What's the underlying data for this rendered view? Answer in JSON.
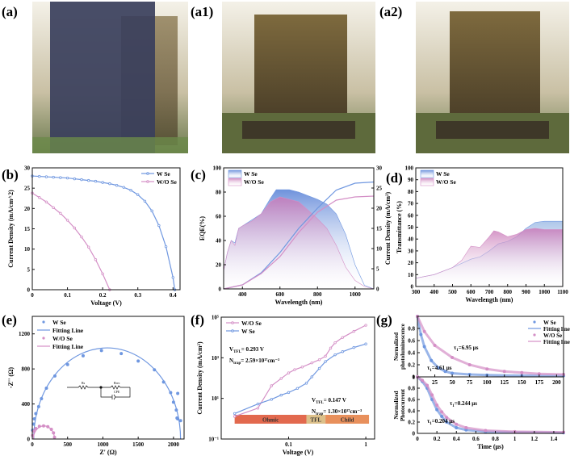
{
  "panel_labels": {
    "a": "(a)",
    "a1": "(a1)",
    "a2": "(a2)",
    "b": "(b)",
    "c": "(c)",
    "d": "(d)",
    "e": "(e)",
    "f": "(f)",
    "g": "(g)"
  },
  "colors": {
    "w_se": "#6f97e0",
    "wo_se": "#d48fc6",
    "ohmic": "#e2694e",
    "tfl": "#dcc08a",
    "child": "#e8905c"
  },
  "chart_data": [
    {
      "id": "b",
      "type": "line",
      "xlabel": "Voltage (V)",
      "ylabel": "Current Density (mA/cm^2)",
      "xlim": [
        0,
        0.42
      ],
      "ylim": [
        0,
        30
      ],
      "xticks": [
        0.0,
        0.1,
        0.2,
        0.3,
        0.4
      ],
      "yticks": [
        0,
        5,
        10,
        15,
        20,
        25,
        30
      ],
      "legend": "top-right",
      "series": [
        {
          "name": "W  Se",
          "color": "w_se",
          "markers": true,
          "x": [
            0,
            0.02,
            0.04,
            0.06,
            0.08,
            0.1,
            0.12,
            0.14,
            0.16,
            0.18,
            0.2,
            0.22,
            0.24,
            0.26,
            0.28,
            0.3,
            0.32,
            0.34,
            0.36,
            0.38,
            0.4,
            0.405
          ],
          "y": [
            28,
            27.9,
            27.8,
            27.7,
            27.6,
            27.5,
            27.3,
            27.1,
            26.9,
            26.7,
            26.4,
            26.1,
            25.7,
            25.2,
            24.5,
            23.4,
            21.8,
            19.4,
            15.8,
            10.6,
            3,
            0
          ]
        },
        {
          "name": "W/O Se",
          "color": "wo_se",
          "markers": true,
          "x": [
            0,
            0.02,
            0.04,
            0.06,
            0.08,
            0.1,
            0.12,
            0.14,
            0.16,
            0.18,
            0.2,
            0.22
          ],
          "y": [
            23.8,
            22.7,
            21.6,
            20.2,
            18.8,
            17.1,
            15.2,
            13,
            10.5,
            7.4,
            3.9,
            0
          ]
        }
      ]
    },
    {
      "id": "c",
      "type": "area",
      "xlabel": "Wavelength (nm)",
      "ylabel": "EQE(%)",
      "y2label": "Current Density (mA/cm²)",
      "xlim": [
        300,
        1100
      ],
      "ylim": [
        0,
        100
      ],
      "y2lim": [
        0,
        30
      ],
      "xticks": [
        400,
        600,
        800,
        1000
      ],
      "yticks": [
        0,
        20,
        40,
        60,
        80,
        100
      ],
      "y2ticks": [
        0,
        5,
        10,
        15,
        20,
        25,
        30
      ],
      "legend": "top-left",
      "series": [
        {
          "name": "W Se",
          "color": "w_se",
          "fill": true,
          "x": [
            300,
            320,
            340,
            360,
            380,
            400,
            450,
            500,
            550,
            580,
            650,
            700,
            750,
            800,
            850,
            900,
            950,
            1000,
            1050,
            1100
          ],
          "y": [
            15,
            30,
            40,
            38,
            50,
            52,
            57,
            62,
            75,
            82,
            82,
            80,
            77,
            74,
            70,
            62,
            45,
            20,
            3,
            0
          ]
        },
        {
          "name": "W/O Se",
          "color": "wo_se",
          "fill": true,
          "x": [
            300,
            320,
            340,
            360,
            380,
            400,
            450,
            500,
            550,
            600,
            650,
            700,
            750,
            800,
            850,
            900,
            950,
            1000,
            1050,
            1100
          ],
          "y": [
            15,
            30,
            40,
            36,
            50,
            52,
            56,
            62,
            72,
            76,
            74,
            72,
            65,
            58,
            50,
            36,
            18,
            7,
            2,
            0
          ]
        },
        {
          "name": "W Se Jsc",
          "color": "w_se",
          "axis": "y2",
          "x": [
            300,
            400,
            500,
            600,
            700,
            800,
            900,
            1000,
            1100
          ],
          "y": [
            0,
            1,
            4,
            9,
            15,
            20,
            24.5,
            26.2,
            26.5
          ]
        },
        {
          "name": "W/O Se Jsc",
          "color": "wo_se",
          "axis": "y2",
          "x": [
            300,
            400,
            500,
            600,
            700,
            800,
            900,
            1000,
            1100
          ],
          "y": [
            0,
            1,
            3.8,
            8,
            14,
            19,
            22,
            22.8,
            23
          ]
        }
      ]
    },
    {
      "id": "d",
      "type": "area",
      "xlabel": "Wavelength (nm)",
      "ylabel": "Transmittance (%)",
      "xlim": [
        300,
        1100
      ],
      "ylim": [
        0,
        100
      ],
      "xticks": [
        300,
        400,
        500,
        600,
        700,
        800,
        900,
        1000,
        1100
      ],
      "yticks": [
        0,
        10,
        20,
        30,
        40,
        50,
        60,
        70,
        80,
        90,
        100
      ],
      "legend": "top-left",
      "series": [
        {
          "name": "W Se",
          "color": "w_se",
          "fill": true,
          "x": [
            300,
            400,
            500,
            600,
            650,
            700,
            750,
            800,
            850,
            900,
            950,
            1000,
            1100
          ],
          "y": [
            7,
            10,
            16,
            23,
            25,
            30,
            36,
            38,
            42,
            49,
            54,
            55,
            55
          ]
        },
        {
          "name": "W/O Se",
          "color": "wo_se",
          "fill": true,
          "x": [
            300,
            400,
            500,
            550,
            600,
            650,
            700,
            725,
            750,
            800,
            850,
            900,
            950,
            1000,
            1100
          ],
          "y": [
            7,
            10,
            16,
            22,
            34,
            33,
            42,
            47,
            46,
            42,
            44,
            48,
            49,
            48,
            48
          ]
        }
      ]
    },
    {
      "id": "e",
      "type": "scatter",
      "xlabel": "Z' (Ω)",
      "ylabel": "-Z'' (Ω)",
      "xlim": [
        0,
        2150
      ],
      "ylim": [
        0,
        1400
      ],
      "xticks": [
        0,
        500,
        1000,
        1500,
        2000
      ],
      "yticks": [
        0,
        400,
        800,
        1200
      ],
      "legend": "top-left",
      "circuit": {
        "rs": "Rs",
        "rrec": "Rrec",
        "cpe": "CPE"
      },
      "series": [
        {
          "name": "W Se",
          "color": "w_se",
          "kind": "points",
          "x": [
            5,
            15,
            30,
            50,
            90,
            130,
            200,
            320,
            500,
            720,
            980,
            1260,
            1500,
            1730,
            1860,
            1960,
            2000,
            2040,
            2050,
            2060,
            2100,
            2060
          ],
          "y": [
            100,
            170,
            230,
            290,
            370,
            460,
            580,
            720,
            850,
            950,
            1010,
            975,
            890,
            790,
            650,
            530,
            420,
            330,
            240,
            520,
            210,
            230
          ]
        },
        {
          "name": "Fitting Line",
          "color": "w_se",
          "kind": "semicircle",
          "center": 1060,
          "radius": 1040
        },
        {
          "name": "W/O Se",
          "color": "wo_se",
          "kind": "points",
          "x": [
            5,
            20,
            50,
            100,
            160,
            220,
            270,
            300,
            315
          ],
          "y": [
            40,
            90,
            120,
            145,
            150,
            140,
            110,
            70,
            20
          ]
        },
        {
          "name": "Fitting Line",
          "color": "wo_se",
          "kind": "semicircle",
          "center": 165,
          "radius": 150
        }
      ]
    },
    {
      "id": "f",
      "type": "line",
      "scale": "log-log",
      "xlabel": "Voltage (V)",
      "ylabel": "Current Density (mA/cm²)",
      "xlim": [
        0.0134,
        1.3
      ],
      "ylim": [
        0.1,
        100000
      ],
      "xticks": [
        0.1,
        1
      ],
      "xticklabels": [
        "0.1",
        "1"
      ],
      "yticks": [
        0.1,
        10,
        1000,
        100000
      ],
      "yticklabels": [
        "10⁻¹",
        "10¹",
        "10³",
        "10⁵"
      ],
      "legend": "top-left",
      "annotations": [
        {
          "text1": "V",
          "sub1": "TFL",
          "rest1": "= 0.293 V",
          "text2": "N",
          "sub2": "trap",
          "rest2": "= 2.59×10¹⁷cm⁻³"
        },
        {
          "text1": "V",
          "sub1": "TFL",
          "rest1": "= 0.147 V",
          "text2": "N",
          "sub2": "trap",
          "rest2": "= 1.30×10¹⁷cm⁻³"
        }
      ],
      "regions": [
        {
          "label": "Ohmic",
          "from": 0.02,
          "to": 0.17,
          "color": "ohmic"
        },
        {
          "label": "TFL",
          "from": 0.17,
          "to": 0.3,
          "color": "tfl"
        },
        {
          "label": "Child",
          "from": 0.3,
          "to": 1.1,
          "color": "child"
        }
      ],
      "series": [
        {
          "name": "W/O Se",
          "color": "wo_se",
          "markers": true,
          "x": [
            0.02,
            0.04,
            0.06,
            0.08,
            0.1,
            0.12,
            0.15,
            0.2,
            0.25,
            0.3,
            0.35,
            0.4,
            0.5,
            0.7,
            1
          ],
          "y": [
            1.3,
            3.3,
            42,
            95,
            180,
            260,
            350,
            560,
            800,
            1200,
            3000,
            5500,
            10000,
            20000,
            40000
          ]
        },
        {
          "name": "W Se",
          "color": "w_se",
          "markers": true,
          "x": [
            0.02,
            0.04,
            0.06,
            0.08,
            0.1,
            0.13,
            0.17,
            0.2,
            0.25,
            0.3,
            0.4,
            0.5,
            0.7,
            1
          ],
          "y": [
            1.8,
            5.3,
            9,
            14.5,
            19.5,
            31,
            56,
            115,
            300,
            650,
            1400,
            2000,
            3200,
            4800
          ]
        }
      ]
    },
    {
      "id": "g_top",
      "type": "scatter",
      "xlabel": "",
      "ylabel": "Normalized photoluminescence",
      "xlim": [
        0,
        210
      ],
      "ylim": [
        0,
        1
      ],
      "xticks": [
        25,
        50,
        75,
        100,
        125,
        150,
        175,
        200
      ],
      "yticks": [
        0,
        0.2,
        0.4,
        0.6,
        0.8
      ],
      "legend": "top-right",
      "annotations": [
        {
          "text": "τ",
          "sub": "1",
          "rest": "=6.95 μs"
        },
        {
          "text": "τ",
          "sub": "1",
          "rest": "=4.61 μs"
        }
      ],
      "series": [
        {
          "name": "W Se",
          "color": "w_se",
          "kind": "points",
          "x": [
            0,
            5,
            10,
            20,
            30,
            40,
            50,
            75,
            100,
            150,
            210
          ],
          "y": [
            1,
            0.7,
            0.5,
            0.27,
            0.15,
            0.09,
            0.06,
            0.04,
            0.03,
            0.02,
            0.02
          ]
        },
        {
          "name": "Fitting line",
          "color": "w_se",
          "kind": "line"
        },
        {
          "name": "W/O Se",
          "color": "wo_se",
          "kind": "points",
          "x": [
            0,
            10,
            25,
            50,
            75,
            100,
            125,
            150,
            175,
            210
          ],
          "y": [
            1,
            0.75,
            0.52,
            0.32,
            0.2,
            0.13,
            0.09,
            0.07,
            0.05,
            0.04
          ]
        },
        {
          "name": "Fitting line",
          "color": "wo_se",
          "kind": "line"
        }
      ]
    },
    {
      "id": "g_bottom",
      "type": "scatter",
      "xlabel": "Time (μs)",
      "ylabel": "Normalized Photocurrent",
      "xlim": [
        0,
        1.5
      ],
      "ylim": [
        0,
        1
      ],
      "xticks": [
        0,
        0.2,
        0.4,
        0.6,
        0.8,
        1.0,
        1.2,
        1.4
      ],
      "yticks": [
        0,
        0.2,
        0.4,
        0.6,
        0.8,
        1.0
      ],
      "annotations": [
        {
          "text": "τ",
          "sub": "1",
          "rest": "=0.244 μs"
        },
        {
          "text": "τ",
          "sub": "1",
          "rest": "=0.204 μs"
        }
      ],
      "series": [
        {
          "name": "W Se",
          "color": "w_se",
          "kind": "points",
          "x": [
            0,
            0.05,
            0.1,
            0.15,
            0.2,
            0.25,
            0.3,
            0.4,
            0.5,
            0.7,
            1,
            1.5
          ],
          "y": [
            1,
            0.92,
            0.8,
            0.6,
            0.42,
            0.3,
            0.2,
            0.1,
            0.06,
            0.03,
            0.02,
            0.01
          ]
        },
        {
          "name": "W/O Se",
          "color": "wo_se",
          "kind": "points",
          "x": [
            0,
            0.05,
            0.1,
            0.15,
            0.2,
            0.25,
            0.3,
            0.4,
            0.5,
            0.7,
            1,
            1.5
          ],
          "y": [
            1,
            0.94,
            0.85,
            0.68,
            0.5,
            0.38,
            0.28,
            0.16,
            0.1,
            0.05,
            0.03,
            0.02
          ]
        }
      ]
    }
  ]
}
